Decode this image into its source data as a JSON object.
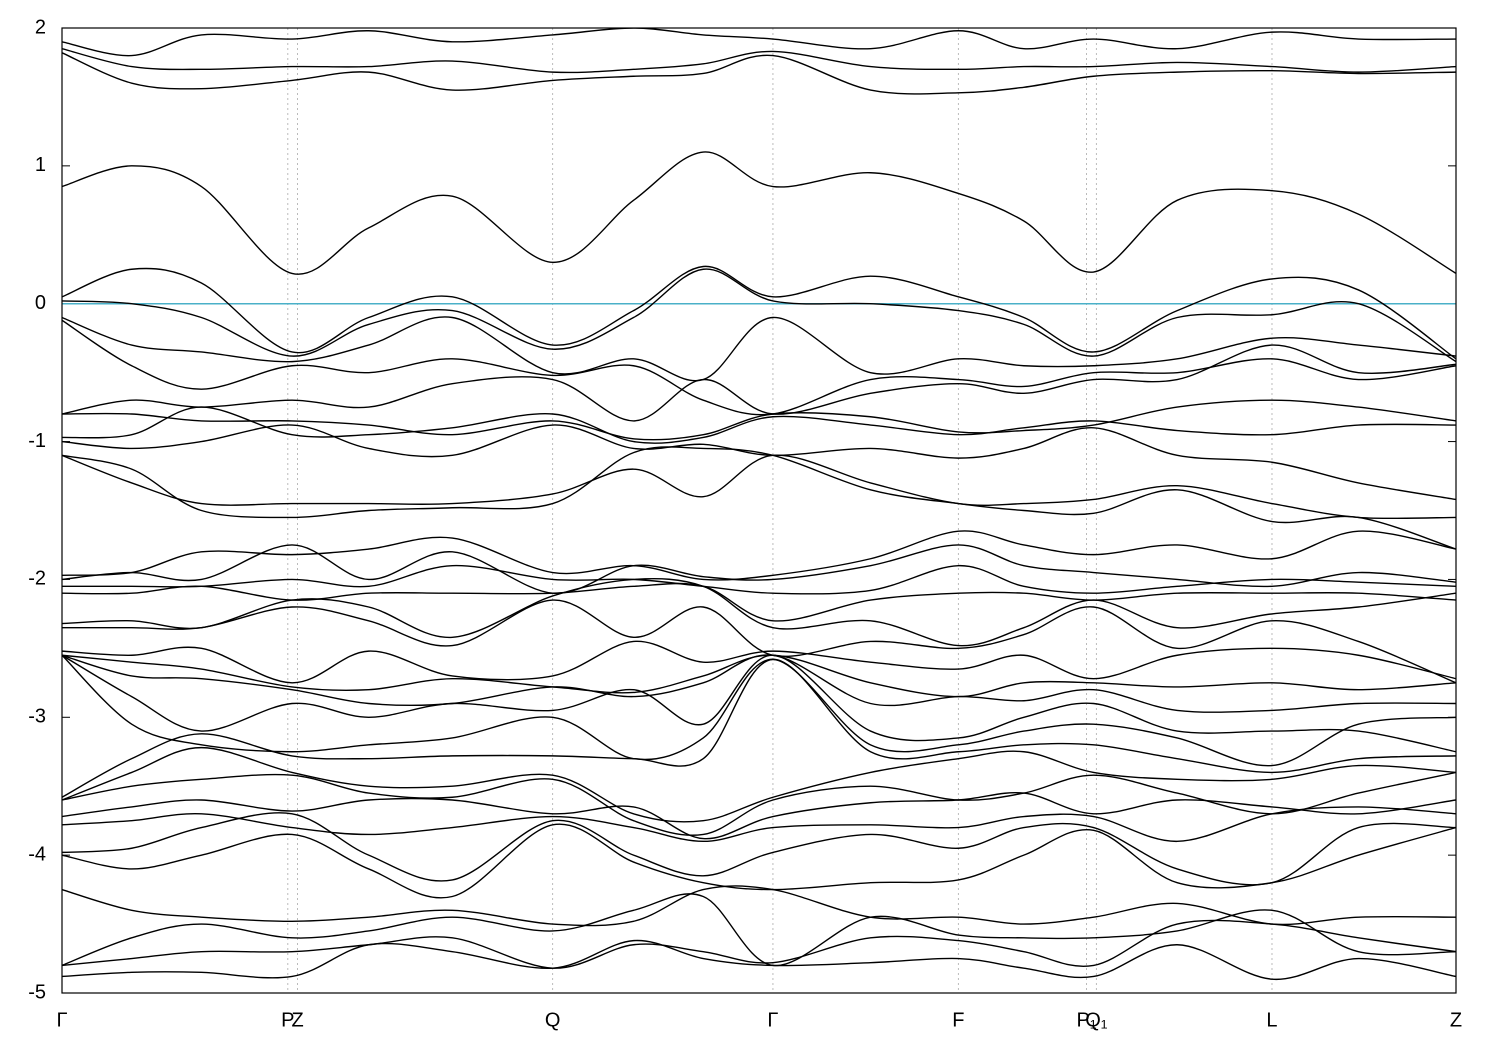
{
  "chart_data": {
    "type": "band-structure",
    "x": [
      0,
      0.05,
      0.1,
      0.165,
      0.22,
      0.28,
      0.352,
      0.41,
      0.46,
      0.51,
      0.58,
      0.643,
      0.69,
      0.74,
      0.8,
      0.868,
      0.93,
      1.0
    ],
    "xlim": [
      0,
      1
    ],
    "xticks": [
      {
        "value": 0,
        "label": "Γ"
      },
      {
        "value": 0.162,
        "label": "P"
      },
      {
        "value": 0.169,
        "label": "Z"
      },
      {
        "value": 0.352,
        "label": "Q"
      },
      {
        "value": 0.51,
        "label": "Γ"
      },
      {
        "value": 0.643,
        "label": "F"
      },
      {
        "value": 0.735,
        "label": "P₁"
      },
      {
        "value": 0.742,
        "label": "Q₁"
      },
      {
        "value": 0.868,
        "label": "L"
      },
      {
        "value": 1,
        "label": "Z"
      }
    ],
    "ylim": [
      -5,
      2
    ],
    "yticks": [
      -5,
      -4,
      -3,
      -2,
      -1,
      0,
      1,
      2
    ],
    "color": "#000000",
    "fermi_level": 0,
    "fermi_color": "#4ab0c8",
    "bands": [
      [
        1.9,
        1.8,
        1.95,
        1.92,
        1.98,
        1.9,
        1.95,
        2.0,
        1.95,
        1.92,
        1.85,
        1.98,
        1.85,
        1.92,
        1.85,
        1.97,
        1.92,
        1.92
      ],
      [
        1.85,
        1.72,
        1.7,
        1.72,
        1.72,
        1.76,
        1.68,
        1.7,
        1.74,
        1.83,
        1.72,
        1.7,
        1.72,
        1.72,
        1.75,
        1.72,
        1.68,
        1.72
      ],
      [
        1.82,
        1.6,
        1.56,
        1.62,
        1.68,
        1.55,
        1.62,
        1.65,
        1.67,
        1.8,
        1.55,
        1.53,
        1.57,
        1.65,
        1.68,
        1.69,
        1.67,
        1.68
      ],
      [
        0.85,
        1.0,
        0.85,
        0.22,
        0.55,
        0.78,
        0.3,
        0.75,
        1.1,
        0.85,
        0.95,
        0.8,
        0.6,
        0.23,
        0.75,
        0.82,
        0.65,
        0.22
      ],
      [
        0.05,
        0.25,
        0.15,
        -0.35,
        -0.1,
        0.05,
        -0.3,
        -0.05,
        0.27,
        0.05,
        0.2,
        0.05,
        -0.1,
        -0.35,
        -0.05,
        0.18,
        0.1,
        -0.4
      ],
      [
        0.02,
        0.0,
        -0.1,
        -0.38,
        -0.15,
        -0.05,
        -0.33,
        -0.1,
        0.25,
        0.02,
        0.0,
        -0.05,
        -0.15,
        -0.38,
        -0.1,
        -0.08,
        0.0,
        -0.42
      ],
      [
        -0.1,
        -0.3,
        -0.35,
        -0.42,
        -0.3,
        -0.1,
        -0.5,
        -0.4,
        -0.55,
        -0.1,
        -0.5,
        -0.4,
        -0.45,
        -0.45,
        -0.4,
        -0.25,
        -0.3,
        -0.38
      ],
      [
        -0.12,
        -0.45,
        -0.62,
        -0.45,
        -0.5,
        -0.4,
        -0.52,
        -0.45,
        -0.7,
        -0.8,
        -0.55,
        -0.55,
        -0.6,
        -0.5,
        -0.5,
        -0.4,
        -0.55,
        -0.45
      ],
      [
        -0.8,
        -0.7,
        -0.75,
        -0.7,
        -0.75,
        -0.58,
        -0.55,
        -0.85,
        -0.55,
        -0.8,
        -0.65,
        -0.58,
        -0.65,
        -0.55,
        -0.55,
        -0.3,
        -0.5,
        -0.44
      ],
      [
        -0.8,
        -0.8,
        -0.85,
        -0.85,
        -0.88,
        -0.95,
        -0.85,
        -0.98,
        -0.95,
        -0.8,
        -0.82,
        -0.93,
        -0.92,
        -0.88,
        -0.75,
        -0.7,
        -0.75,
        -0.85
      ],
      [
        -0.97,
        -0.95,
        -0.75,
        -0.95,
        -0.95,
        -0.9,
        -0.8,
        -1.0,
        -0.97,
        -0.82,
        -0.88,
        -0.95,
        -0.9,
        -0.85,
        -0.92,
        -0.95,
        -0.88,
        -0.88
      ],
      [
        -1.0,
        -1.05,
        -1.0,
        -0.88,
        -1.05,
        -1.1,
        -0.88,
        -1.05,
        -1.02,
        -1.1,
        -1.05,
        -1.12,
        -1.05,
        -0.9,
        -1.1,
        -1.15,
        -1.3,
        -1.42
      ],
      [
        -1.1,
        -1.3,
        -1.45,
        -1.45,
        -1.45,
        -1.45,
        -1.38,
        -1.2,
        -1.4,
        -1.1,
        -1.3,
        -1.45,
        -1.45,
        -1.42,
        -1.32,
        -1.45,
        -1.55,
        -1.55
      ],
      [
        -1.1,
        -1.2,
        -1.5,
        -1.55,
        -1.5,
        -1.48,
        -1.45,
        -1.08,
        -1.05,
        -1.1,
        -1.35,
        -1.45,
        -1.5,
        -1.52,
        -1.35,
        -1.58,
        -1.55,
        -1.78
      ],
      [
        -1.97,
        -1.95,
        -1.8,
        -1.82,
        -1.78,
        -1.7,
        -1.95,
        -1.9,
        -2.0,
        -1.97,
        -1.85,
        -1.65,
        -1.75,
        -1.82,
        -1.75,
        -1.85,
        -1.65,
        -1.78
      ],
      [
        -2.0,
        -1.95,
        -2.0,
        -1.75,
        -2.0,
        -1.8,
        -2.1,
        -1.9,
        -1.98,
        -2.0,
        -1.9,
        -1.75,
        -1.9,
        -1.95,
        -2.0,
        -2.05,
        -1.95,
        -2.02
      ],
      [
        -2.05,
        -2.05,
        -2.05,
        -2.0,
        -2.05,
        -1.9,
        -2.0,
        -2.0,
        -2.05,
        -2.1,
        -2.08,
        -1.9,
        -2.05,
        -2.1,
        -2.05,
        -2.0,
        -2.02,
        -2.05
      ],
      [
        -2.1,
        -2.1,
        -2.05,
        -2.15,
        -2.1,
        -2.1,
        -2.1,
        -2.05,
        -2.05,
        -2.3,
        -2.15,
        -2.1,
        -2.1,
        -2.15,
        -2.1,
        -2.1,
        -2.1,
        -2.15
      ],
      [
        -2.32,
        -2.3,
        -2.35,
        -2.15,
        -2.2,
        -2.42,
        -2.12,
        -2.0,
        -2.05,
        -2.35,
        -2.3,
        -2.48,
        -2.35,
        -2.15,
        -2.35,
        -2.25,
        -2.2,
        -2.1
      ],
      [
        -2.35,
        -2.35,
        -2.35,
        -2.2,
        -2.3,
        -2.48,
        -2.15,
        -2.42,
        -2.2,
        -2.55,
        -2.45,
        -2.5,
        -2.4,
        -2.2,
        -2.5,
        -2.3,
        -2.45,
        -2.75
      ],
      [
        -2.52,
        -2.55,
        -2.5,
        -2.75,
        -2.52,
        -2.7,
        -2.7,
        -2.45,
        -2.6,
        -2.52,
        -2.6,
        -2.65,
        -2.55,
        -2.72,
        -2.55,
        -2.5,
        -2.55,
        -2.72
      ],
      [
        -2.55,
        -2.6,
        -2.65,
        -2.78,
        -2.8,
        -2.72,
        -2.78,
        -2.82,
        -2.7,
        -2.55,
        -2.75,
        -2.85,
        -2.75,
        -2.75,
        -2.78,
        -2.75,
        -2.8,
        -2.75
      ],
      [
        -2.55,
        -2.7,
        -2.72,
        -2.8,
        -2.9,
        -2.9,
        -2.78,
        -2.85,
        -2.75,
        -2.55,
        -2.9,
        -2.85,
        -2.88,
        -2.8,
        -2.95,
        -2.95,
        -2.9,
        -2.9
      ],
      [
        -2.55,
        -2.85,
        -3.1,
        -2.9,
        -3.0,
        -2.9,
        -2.95,
        -2.8,
        -3.05,
        -2.55,
        -3.1,
        -3.15,
        -3.0,
        -2.9,
        -3.1,
        -3.1,
        -3.1,
        -3.25
      ],
      [
        -2.55,
        -3.05,
        -3.2,
        -3.25,
        -3.2,
        -3.15,
        -3.0,
        -3.3,
        -3.15,
        -2.58,
        -3.2,
        -3.2,
        -3.1,
        -3.05,
        -3.15,
        -3.35,
        -3.05,
        -3.0
      ],
      [
        -3.58,
        -3.3,
        -3.12,
        -3.28,
        -3.3,
        -3.28,
        -3.28,
        -3.3,
        -3.3,
        -2.58,
        -3.25,
        -3.25,
        -3.2,
        -3.2,
        -3.3,
        -3.4,
        -3.3,
        -3.28
      ],
      [
        -3.6,
        -3.4,
        -3.22,
        -3.4,
        -3.5,
        -3.5,
        -3.42,
        -3.7,
        -3.75,
        -3.58,
        -3.4,
        -3.3,
        -3.25,
        -3.4,
        -3.45,
        -3.45,
        -3.35,
        -3.4
      ],
      [
        -3.6,
        -3.5,
        -3.45,
        -3.42,
        -3.55,
        -3.58,
        -3.45,
        -3.75,
        -3.85,
        -3.6,
        -3.5,
        -3.6,
        -3.55,
        -3.42,
        -3.55,
        -3.7,
        -3.55,
        -3.4
      ],
      [
        -3.72,
        -3.65,
        -3.6,
        -3.68,
        -3.6,
        -3.6,
        -3.7,
        -3.65,
        -3.88,
        -3.72,
        -3.62,
        -3.6,
        -3.55,
        -3.7,
        -3.6,
        -3.65,
        -3.7,
        -3.6
      ],
      [
        -3.78,
        -3.75,
        -3.7,
        -3.8,
        -3.85,
        -3.8,
        -3.72,
        -3.8,
        -3.9,
        -3.8,
        -3.78,
        -3.8,
        -3.72,
        -3.72,
        -3.9,
        -3.7,
        -3.65,
        -3.7
      ],
      [
        -3.98,
        -3.95,
        -3.8,
        -3.7,
        -4.0,
        -4.18,
        -3.75,
        -4.0,
        -4.15,
        -3.98,
        -3.85,
        -3.95,
        -3.8,
        -3.8,
        -4.1,
        -4.2,
        -3.8,
        -3.8
      ],
      [
        -4.0,
        -4.1,
        -4.0,
        -3.85,
        -4.1,
        -4.3,
        -3.78,
        -4.05,
        -4.2,
        -4.25,
        -4.2,
        -4.18,
        -4.0,
        -3.82,
        -4.2,
        -4.2,
        -4.0,
        -3.8
      ],
      [
        -4.25,
        -4.4,
        -4.45,
        -4.48,
        -4.45,
        -4.4,
        -4.5,
        -4.48,
        -4.25,
        -4.25,
        -4.45,
        -4.45,
        -4.5,
        -4.45,
        -4.35,
        -4.5,
        -4.45,
        -4.45
      ],
      [
        -4.8,
        -4.6,
        -4.5,
        -4.6,
        -4.55,
        -4.45,
        -4.55,
        -4.4,
        -4.3,
        -4.8,
        -4.45,
        -4.58,
        -4.6,
        -4.6,
        -4.55,
        -4.4,
        -4.7,
        -4.7
      ],
      [
        -4.8,
        -4.75,
        -4.7,
        -4.7,
        -4.65,
        -4.6,
        -4.82,
        -4.65,
        -4.7,
        -4.78,
        -4.6,
        -4.62,
        -4.7,
        -4.8,
        -4.5,
        -4.5,
        -4.6,
        -4.7
      ],
      [
        -4.88,
        -4.85,
        -4.85,
        -4.88,
        -4.65,
        -4.7,
        -4.82,
        -4.62,
        -4.75,
        -4.8,
        -4.78,
        -4.75,
        -4.82,
        -4.88,
        -4.65,
        -4.9,
        -4.75,
        -4.88
      ]
    ]
  }
}
